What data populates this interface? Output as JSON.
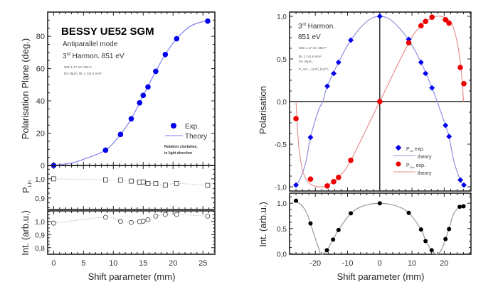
{
  "chart_data": [
    {
      "type": "scatter",
      "panels": [
        {
          "ylabel": "Polarisation Plane  (deg.)",
          "ylim": [
            0,
            95
          ],
          "yticks": [
            "0",
            "20",
            "40",
            "60",
            "80"
          ],
          "ytick_values": [
            0,
            20,
            40,
            60,
            80
          ],
          "series": [
            {
              "name": "Exp.",
              "style": "filled-circle",
              "color": "#0000ee",
              "x": [
                0,
                8.7,
                11.2,
                13.0,
                14.4,
                15.0,
                15.8,
                17.1,
                18.7,
                20.6,
                25.8
              ],
              "y": [
                0,
                9.5,
                19.2,
                28.9,
                38.8,
                43.4,
                48.6,
                58.3,
                68.7,
                78.5,
                89.4
              ]
            },
            {
              "name": "Theory",
              "style": "line",
              "color": "#8080ee",
              "x": [
                0,
                3,
                5,
                8.7,
                11.2,
                13.0,
                15.0,
                17.1,
                18.7,
                20.6,
                23,
                26
              ],
              "y": [
                0,
                1.5,
                3.8,
                9.5,
                19.2,
                28.9,
                43.2,
                58.3,
                68.7,
                78.5,
                86.5,
                90
              ]
            }
          ]
        },
        {
          "ylabel": "P",
          "ylabel_sub": "Lin",
          "ylim": [
            0.84,
            1.07
          ],
          "yticks": [
            "1,0",
            "0,9"
          ],
          "ytick_values": [
            1.0,
            0.9
          ],
          "series": [
            {
              "style": "open-square",
              "color": "#333333",
              "x": [
                0,
                8.7,
                11.2,
                13.0,
                14.4,
                15.0,
                15.8,
                17.1,
                18.7,
                20.6,
                25.8
              ],
              "y": [
                1.0,
                0.995,
                0.993,
                0.988,
                0.983,
                0.984,
                0.975,
                0.975,
                0.967,
                0.976,
                0.966
              ]
            }
          ]
        },
        {
          "ylabel": "Int. (arb.u.)",
          "ylim": [
            0.75,
            1.08
          ],
          "yticks": [
            "1,0",
            "0,9",
            "0,8"
          ],
          "ytick_values": [
            1.0,
            0.9,
            0.8
          ],
          "series": [
            {
              "style": "open-circle",
              "color": "#333333",
              "x": [
                0,
                8.7,
                11.2,
                13.0,
                14.4,
                15.0,
                15.8,
                17.1,
                18.7,
                20.6,
                25.8
              ],
              "y": [
                0.987,
                1.032,
                1.0,
                0.992,
                0.998,
                1.002,
                1.013,
                1.04,
                1.053,
                1.053,
                1.04
              ]
            }
          ]
        }
      ],
      "xlabel": "Shift parameter  (mm)",
      "xlim": [
        -1,
        27
      ],
      "xticks": [
        "0",
        "5",
        "10",
        "15",
        "20",
        "25"
      ],
      "xtick_values": [
        0,
        5,
        10,
        15,
        20,
        25
      ],
      "annotations": {
        "title": "BESSY  UE52 SGM",
        "mode": "Antiparallel mode",
        "harmonic": "3",
        "harmonic_sup": "rd",
        "harmonic_rest": " Harmon.  851 eV",
        "note1": "WSi 1.17 nm 150 P",
        "note2": "ES 25µm, BL 1.1x1.6 mm²",
        "rotation1": "Rotation clockwise,",
        "rotation2": "in light direction"
      }
    },
    {
      "type": "scatter",
      "panels": [
        {
          "ylabel": "Polarisation",
          "ylim": [
            -1.05,
            1.05
          ],
          "yticks": [
            "1,0",
            "0,5",
            "0,0",
            "-0,5",
            "-1,0"
          ],
          "ytick_values": [
            1.0,
            0.5,
            0.0,
            -0.5,
            -1.0
          ],
          "series": [
            {
              "name": "P_Lin exp.",
              "style": "filled-diamond",
              "color": "#0000ee",
              "x": [
                -26.0,
                -21.5,
                -16.3,
                -14.3,
                -12.8,
                -9.0,
                0,
                9.0,
                12.8,
                14.2,
                16.2,
                20.4,
                21.5,
                25.0,
                26.1
              ],
              "y": [
                -0.98,
                -0.42,
                0.18,
                0.33,
                0.46,
                0.72,
                1.0,
                0.73,
                0.46,
                0.33,
                0.16,
                -0.28,
                -0.41,
                -0.92,
                -0.98
              ]
            },
            {
              "name": "theory",
              "style": "line",
              "color": "#9090e0",
              "x": [
                -26.5,
                -25,
                -23,
                -21.5,
                -19,
                -17.7,
                -16.3,
                -12.8,
                -9,
                -4,
                0,
                4,
                9,
                12.8,
                16.2,
                17.8,
                20.4,
                21.5,
                23,
                25,
                26.5
              ],
              "y": [
                -1.0,
                -0.93,
                -0.72,
                -0.42,
                -0.1,
                0,
                0.18,
                0.46,
                0.72,
                0.94,
                1.0,
                0.94,
                0.72,
                0.46,
                0.16,
                0,
                -0.28,
                -0.41,
                -0.7,
                -0.92,
                -1.0
              ]
            },
            {
              "name": "P_Circ exp.",
              "style": "filled-circle",
              "color": "#ee0000",
              "x": [
                -26.0,
                -21.5,
                -16.3,
                -14.3,
                -12.8,
                -9.0,
                0,
                9.0,
                12.8,
                14.2,
                16.2,
                20.4,
                21.5,
                25.0,
                26.1
              ],
              "y": [
                -0.2,
                -0.91,
                -0.99,
                -0.94,
                -0.89,
                -0.69,
                0,
                0.69,
                0.89,
                0.94,
                0.99,
                0.96,
                0.92,
                0.4,
                0.21
              ]
            },
            {
              "name": "theory",
              "style": "line",
              "color": "#e89090",
              "x": [
                -26.0,
                -25.2,
                -24,
                -22.5,
                -21,
                -19,
                -17.5,
                -16,
                -12.8,
                -9,
                0,
                9,
                12.8,
                16,
                17.5,
                19,
                21,
                22.5,
                24,
                25.2,
                26.0
              ],
              "y": [
                0,
                -0.5,
                -0.8,
                -0.93,
                -0.98,
                -1.0,
                -1.0,
                -0.98,
                -0.89,
                -0.69,
                0,
                0.69,
                0.89,
                0.98,
                1.0,
                1.0,
                0.97,
                0.9,
                0.7,
                0.4,
                0
              ]
            }
          ]
        },
        {
          "ylabel": "Int. (arb.u.)",
          "ylim": [
            -0.01,
            1.2
          ],
          "yticks": [
            "1,0",
            "0,5",
            "0,0"
          ],
          "ytick_values": [
            1.0,
            0.5,
            0.0
          ],
          "series": [
            {
              "style": "filled-circle",
              "color": "#000000",
              "x": [
                -26.0,
                -21.5,
                -16.4,
                -14.5,
                -12.8,
                -9.0,
                0,
                9.0,
                12.8,
                14.2,
                16.1,
                20.4,
                21.5,
                24.8,
                26.0
              ],
              "y": [
                1.05,
                0.6,
                0.07,
                0.28,
                0.47,
                0.8,
                1.0,
                0.81,
                0.48,
                0.25,
                0.07,
                0.29,
                0.49,
                0.93,
                0.94
              ]
            },
            {
              "style": "line",
              "color": "#999999",
              "x": [
                -27,
                -25,
                -23,
                -21.5,
                -20,
                -19,
                -18.4,
                -17.5,
                -16.4,
                -14.5,
                -12.8,
                -9,
                -5,
                0,
                5,
                9,
                12.8,
                14.2,
                16.1,
                17.3,
                18.2,
                19.3,
                20.4,
                21.5,
                23,
                25,
                26.2
              ],
              "y": [
                1.03,
                1.0,
                0.85,
                0.6,
                0.3,
                0.12,
                0.0,
                0.0,
                0.07,
                0.28,
                0.47,
                0.8,
                0.95,
                1.0,
                0.95,
                0.81,
                0.48,
                0.27,
                0.07,
                0.0,
                0.0,
                0.1,
                0.29,
                0.5,
                0.8,
                0.94,
                0.96
              ]
            }
          ]
        }
      ],
      "xlabel": "Shift parameter  (mm)",
      "xlim": [
        -28,
        28.3
      ],
      "xticks": [
        "-20",
        "-10",
        "0",
        "10",
        "20"
      ],
      "xtick_values": [
        -20,
        -10,
        0,
        10,
        20
      ],
      "annotations": {
        "harmonic": "3",
        "harmonic_sup": "rd",
        "harmonic_rest": " Harmon.",
        "energy": "851 eV",
        "note1": "WSi 1.17 nm 150 P",
        "note2": "BL 1.1x1.6 mm²",
        "note3": "ES 25µm,",
        "note4": "P_circ = (1-P²_lin)^½",
        "legend_lin": "P",
        "legend_lin_sub": "Lin",
        "legend_exp": " exp.",
        "legend_theory": "theory",
        "legend_circ": "P",
        "legend_circ_sub": "Circ"
      }
    }
  ]
}
